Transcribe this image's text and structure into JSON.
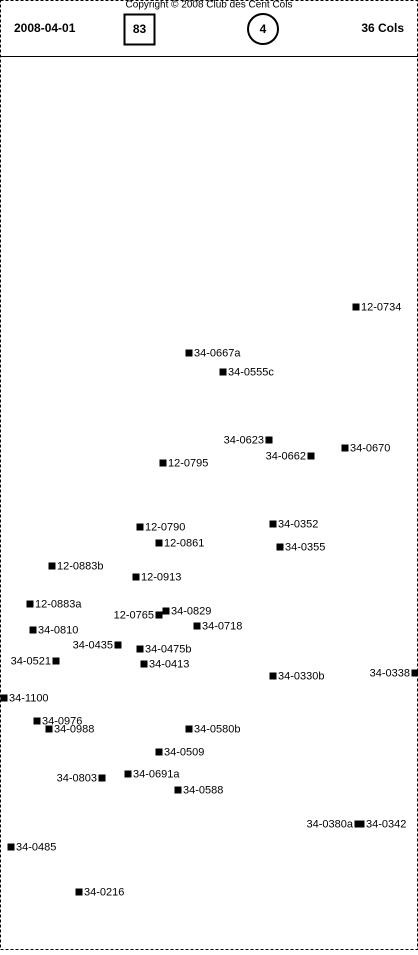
{
  "header": {
    "copyright": "Copyright © 2008 Club des Cent Cols",
    "date": "2008-04-01",
    "boxed_count": 83,
    "circled_count": 4,
    "total": "36 Cols"
  },
  "points": [
    {
      "label": "12-0734"
    },
    {
      "label": "34-0667a"
    },
    {
      "label": "34-0555c"
    },
    {
      "label": "34-0623"
    },
    {
      "label": "34-0662"
    },
    {
      "label": "34-0670"
    },
    {
      "label": "12-0795"
    },
    {
      "label": "12-0790"
    },
    {
      "label": "34-0352"
    },
    {
      "label": "12-0861"
    },
    {
      "label": "34-0355"
    },
    {
      "label": "12-0883b"
    },
    {
      "label": "12-0913"
    },
    {
      "label": "12-0883a"
    },
    {
      "label": "34-0829"
    },
    {
      "label": "12-0765"
    },
    {
      "label": "34-0718"
    },
    {
      "label": "34-0810"
    },
    {
      "label": "34-0435"
    },
    {
      "label": "34-0475b"
    },
    {
      "label": "34-0521"
    },
    {
      "label": "34-0413"
    },
    {
      "label": "34-0338"
    },
    {
      "label": "34-0330b"
    },
    {
      "label": "34-1100"
    },
    {
      "label": "34-0976"
    },
    {
      "label": "34-0988"
    },
    {
      "label": "34-0580b"
    },
    {
      "label": "34-0509"
    },
    {
      "label": "34-0803"
    },
    {
      "label": "34-0691a"
    },
    {
      "label": "34-0588"
    },
    {
      "label": "34-0380a"
    },
    {
      "label": "34-0342"
    },
    {
      "label": "34-0485"
    },
    {
      "label": "34-0216"
    }
  ]
}
